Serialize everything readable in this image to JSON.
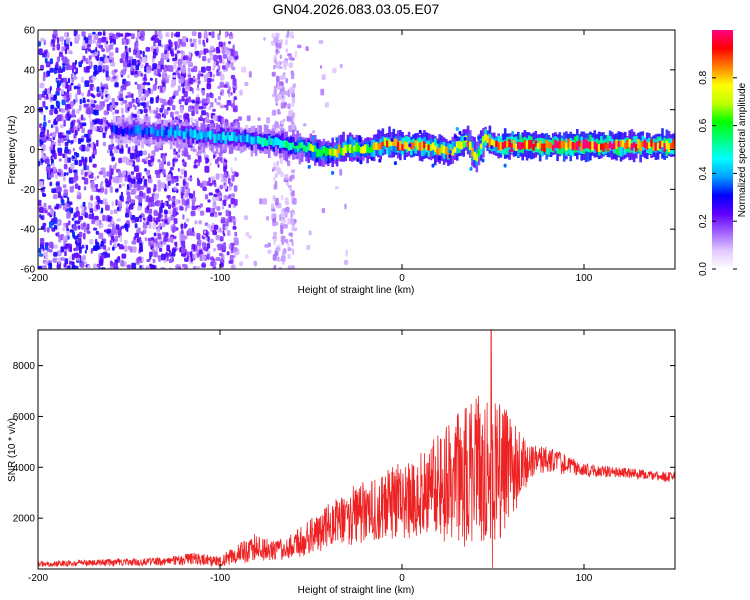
{
  "title": "GN04.2026.083.03.05.E07",
  "chart_data": [
    {
      "type": "heatmap",
      "name": "spectrogram",
      "xlabel": "Height of straight line (km)",
      "ylabel": "Frequency (Hz)",
      "xlim": [
        -200,
        150
      ],
      "ylim": [
        -60,
        60
      ],
      "xticks": [
        -200,
        -100,
        0,
        100
      ],
      "yticks": [
        -60,
        -40,
        -20,
        0,
        20,
        40,
        60
      ],
      "colorbar": {
        "label": "Normalized spectral amplitude",
        "range": [
          0,
          1
        ],
        "ticks": [
          0.0,
          0.2,
          0.4,
          0.6,
          0.8
        ],
        "tick_labels": [
          "0.0",
          "0.2",
          "0.4",
          "0.6",
          "0.8"
        ],
        "colors": [
          "#ffffff",
          "#e0c8ff",
          "#a060ff",
          "#6000ff",
          "#0000ff",
          "#00a0ff",
          "#00ffff",
          "#00ff80",
          "#00ff00",
          "#c0ff00",
          "#ffff00",
          "#ff8000",
          "#ff0000",
          "#ff0080"
        ]
      },
      "ridge": {
        "x": [
          -160,
          -140,
          -120,
          -100,
          -80,
          -60,
          -50,
          -40,
          -30,
          -20,
          -10,
          0,
          10,
          20,
          25,
          30,
          35,
          40,
          45,
          50,
          60,
          80,
          100,
          120,
          150
        ],
        "freq": [
          10,
          9,
          8,
          6,
          5,
          2,
          0,
          -2,
          1,
          0,
          3,
          2,
          2,
          0,
          -2,
          2,
          5,
          -4,
          6,
          2,
          2,
          2,
          2,
          2,
          2
        ],
        "amplitude": [
          0.3,
          0.35,
          0.4,
          0.45,
          0.45,
          0.55,
          0.65,
          0.7,
          0.75,
          0.7,
          0.8,
          0.85,
          0.85,
          0.8,
          0.75,
          0.85,
          0.8,
          0.7,
          0.8,
          0.85,
          0.9,
          0.95,
          0.95,
          0.9,
          0.9
        ]
      }
    },
    {
      "type": "line",
      "name": "snr",
      "xlabel": "Height of straight line (km)",
      "ylabel": "SNR (10 * v/v)",
      "xlim": [
        -200,
        150
      ],
      "ylim": [
        0,
        9400
      ],
      "xticks": [
        -200,
        -100,
        0,
        100
      ],
      "yticks": [
        2000,
        4000,
        6000,
        8000
      ],
      "color": "#ee2222",
      "envelope": {
        "x": [
          -200,
          -160,
          -130,
          -115,
          -100,
          -90,
          -80,
          -70,
          -60,
          -50,
          -40,
          -30,
          -20,
          -10,
          0,
          10,
          20,
          30,
          40,
          45,
          50,
          55,
          60,
          70,
          80,
          90,
          100,
          120,
          150
        ],
        "base": [
          200,
          250,
          300,
          400,
          300,
          600,
          900,
          700,
          900,
          1300,
          1700,
          2000,
          2300,
          2500,
          2700,
          2900,
          3200,
          3500,
          3800,
          3800,
          3900,
          3800,
          3900,
          4200,
          4300,
          4100,
          3900,
          3800,
          3600
        ],
        "spread": [
          100,
          150,
          150,
          250,
          200,
          400,
          600,
          400,
          500,
          700,
          900,
          1100,
          1300,
          1400,
          1500,
          1700,
          2100,
          2600,
          3000,
          3200,
          3000,
          2600,
          2200,
          700,
          500,
          400,
          250,
          200,
          200
        ]
      },
      "peak": {
        "x": 49,
        "y": 9400
      }
    }
  ]
}
